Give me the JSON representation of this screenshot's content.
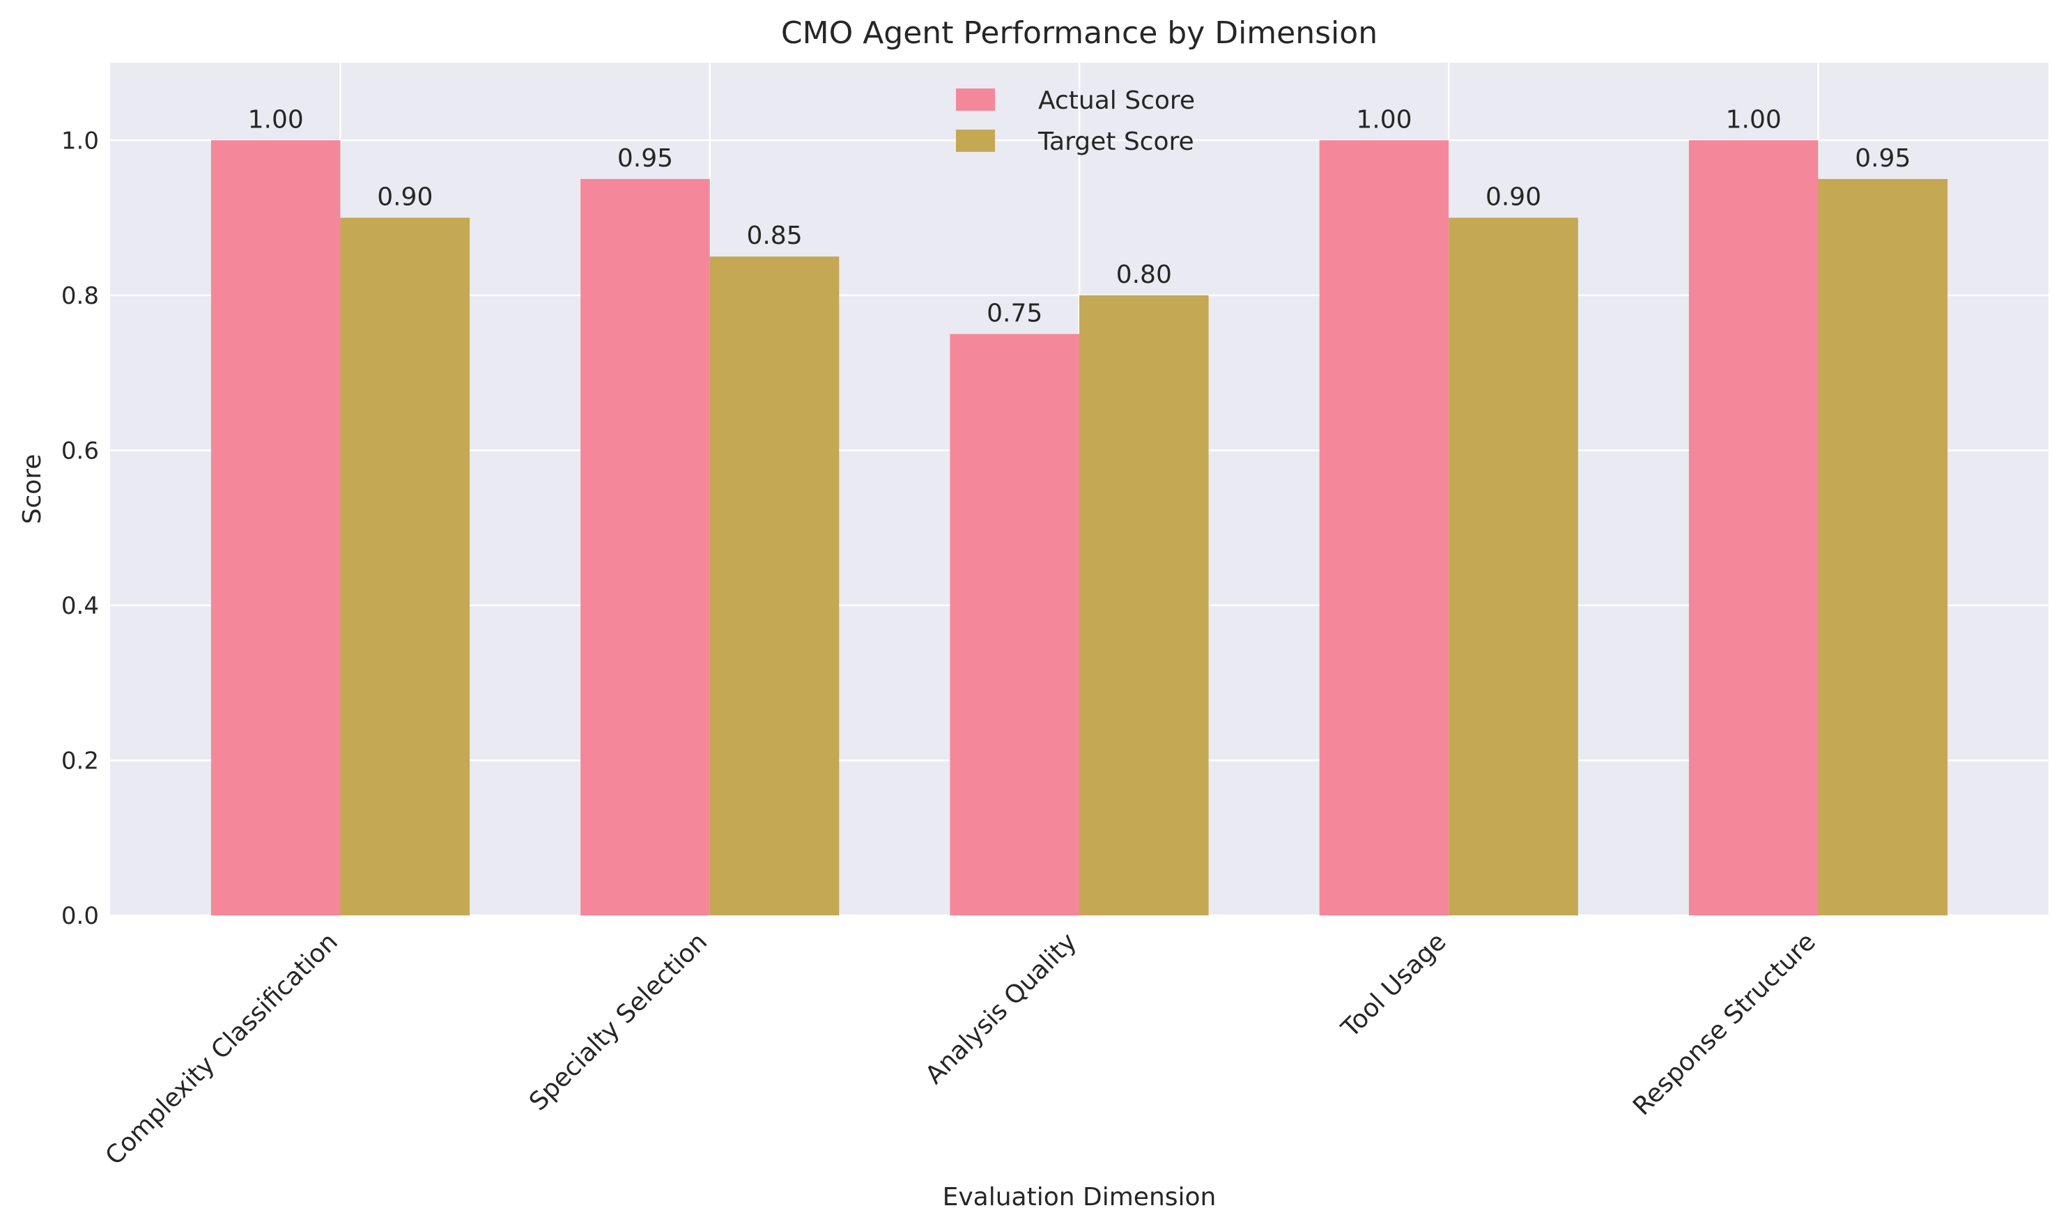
{
  "chart_data": {
    "type": "bar",
    "title": "CMO Agent Performance by Dimension",
    "xlabel": "Evaluation Dimension",
    "ylabel": "Score",
    "ylim": [
      0,
      1.1
    ],
    "yticks": [
      "0.0",
      "0.2",
      "0.4",
      "0.6",
      "0.8",
      "1.0"
    ],
    "grid": true,
    "legend_position": "top-center",
    "categories": [
      "Complexity Classification",
      "Specialty Selection",
      "Analysis Quality",
      "Tool Usage",
      "Response Structure"
    ],
    "series": [
      {
        "name": "Actual Score",
        "color": "#f4889a",
        "values": [
          1.0,
          0.95,
          0.75,
          1.0,
          1.0
        ],
        "labels": [
          "1.00",
          "0.95",
          "0.75",
          "1.00",
          "1.00"
        ]
      },
      {
        "name": "Target Score",
        "color": "#c4a854",
        "values": [
          0.9,
          0.85,
          0.8,
          0.9,
          0.95
        ],
        "labels": [
          "0.90",
          "0.85",
          "0.80",
          "0.90",
          "0.95"
        ]
      }
    ]
  }
}
